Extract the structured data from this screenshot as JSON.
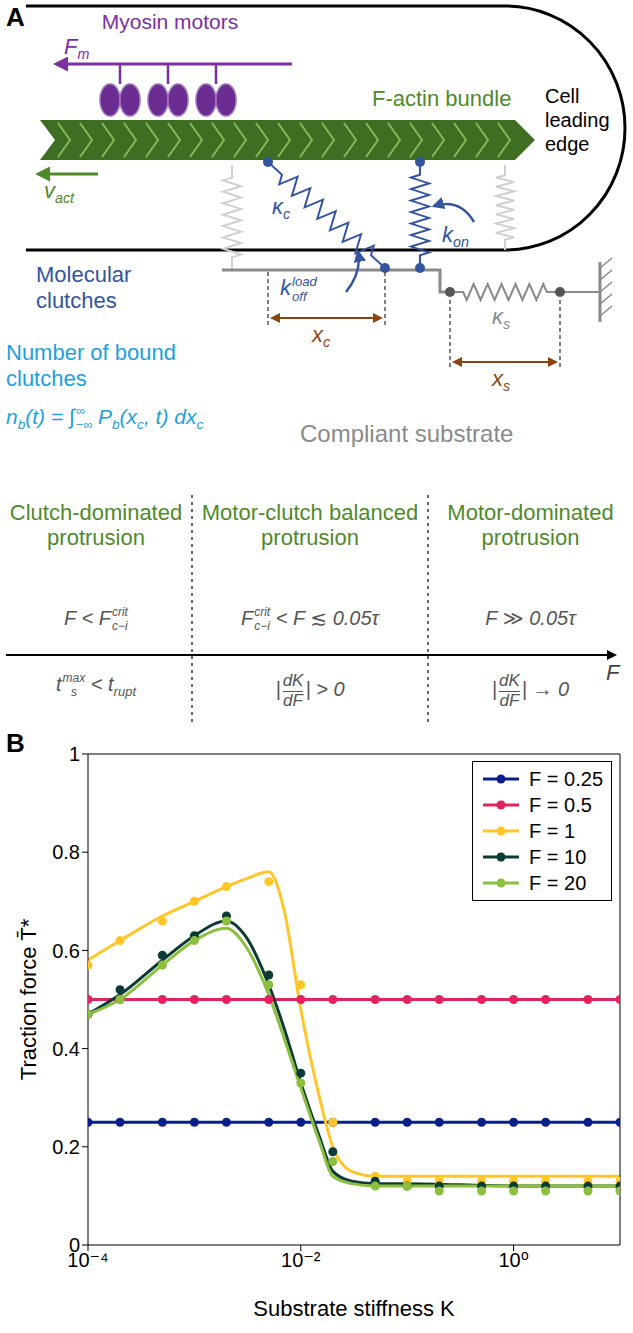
{
  "panel_a": {
    "label": "A",
    "cell": "Cell leading edge",
    "motors": "Myosin motors",
    "motor_force": [
      {
        "t": "F"
      },
      {
        "sub": "m"
      }
    ],
    "actin": "F-actin bundle",
    "actin_velocity": [
      {
        "t": "v"
      },
      {
        "sub": "act"
      }
    ],
    "clutches": "Molecular clutches",
    "clutch_stiffness": [
      {
        "t": "κ"
      },
      {
        "sub": "c"
      }
    ],
    "off_rate": [
      {
        "t": "k"
      },
      {
        "sub": "off",
        "sup": "load"
      }
    ],
    "on_rate": [
      {
        "t": "k"
      },
      {
        "sub": "on"
      }
    ],
    "clutch_stretch": [
      {
        "t": "x"
      },
      {
        "sub": "c"
      }
    ],
    "substrate_stretch": [
      {
        "t": "x"
      },
      {
        "sub": "s"
      }
    ],
    "substrate_stiffness": [
      {
        "t": "κ"
      },
      {
        "sub": "s"
      }
    ],
    "bound_count": "Number of bound clutches",
    "bound_formula": [
      {
        "t": "n"
      },
      {
        "sub": "b"
      },
      {
        "t": "(t) = ∫"
      },
      {
        "sub": "−∞",
        "sup": "∞"
      },
      {
        "t": " P"
      },
      {
        "sub": "b"
      },
      {
        "t": "(x"
      },
      {
        "sub": "c"
      },
      {
        "t": ", t) dx"
      },
      {
        "sub": "c"
      }
    ],
    "substrate": "Compliant substrate",
    "regimes": [
      {
        "title": "Clutch-dominated protrusion",
        "condition": [
          {
            "t": "F < F"
          },
          {
            "sub": "c−i",
            "sup": "crit"
          }
        ],
        "criterion": [
          {
            "t": "t"
          },
          {
            "sub": "s",
            "sup": "max"
          },
          {
            "t": " < t"
          },
          {
            "sub": "rupt"
          }
        ]
      },
      {
        "title": "Motor-clutch balanced protrusion",
        "condition": [
          {
            "t": "F"
          },
          {
            "sub": "c−i",
            "sup": "crit"
          },
          {
            "t": " < F ≲ 0.05τ"
          }
        ],
        "criterion": [
          {
            "t": "|"
          },
          {
            "num": "dK",
            "den": "dF"
          },
          {
            "t": "| > 0"
          }
        ]
      },
      {
        "title": "Motor-dominated protrusion",
        "condition": [
          {
            "t": "F ≫ 0.05τ"
          }
        ],
        "criterion": [
          {
            "t": "|"
          },
          {
            "num": "dK",
            "den": "dF"
          },
          {
            "t": "| → 0"
          }
        ]
      }
    ],
    "axis": "F"
  },
  "chart_data": {
    "label": "B",
    "type": "line",
    "x_label": "Substrate stiffness K",
    "y_label": "Traction force T̄*",
    "log": "x",
    "xlim": [
      0.0001,
      10
    ],
    "xticks": [
      {
        "value": 0.0001,
        "label": "10⁻⁴"
      },
      {
        "value": 0.01,
        "label": "10⁻²"
      },
      {
        "value": 1,
        "label": "10⁰"
      }
    ],
    "ylim": [
      0,
      1
    ],
    "yticks": [
      0,
      0.2,
      0.4,
      0.6,
      0.8,
      1
    ],
    "grid": false,
    "legend": "upper right",
    "x": [
      0.0001,
      0.0002,
      0.0005,
      0.001,
      0.002,
      0.003,
      0.005,
      0.007,
      0.01,
      0.015,
      0.02,
      0.03,
      0.05,
      0.1,
      1,
      10
    ],
    "series": [
      {
        "name": "F = 0.25",
        "color": "#0b1f8c",
        "marker": "circle",
        "line_style": "solid",
        "values": [
          0.25,
          0.25,
          0.25,
          0.25,
          0.25,
          0.25,
          0.25,
          0.25,
          0.25,
          0.25,
          0.25,
          0.25,
          0.25,
          0.25,
          0.25,
          0.25
        ],
        "points": {
          "x": [
            0.0001,
            0.0002,
            0.0005,
            0.001,
            0.002,
            0.005,
            0.01,
            0.02,
            0.05,
            0.1,
            0.2,
            0.5,
            1,
            2,
            5,
            10
          ],
          "values": [
            0.25,
            0.25,
            0.25,
            0.25,
            0.25,
            0.25,
            0.25,
            0.25,
            0.25,
            0.25,
            0.25,
            0.25,
            0.25,
            0.25,
            0.25,
            0.25
          ]
        }
      },
      {
        "name": "F = 0.5",
        "color": "#e0245e",
        "marker": "circle",
        "line_style": "solid",
        "values": [
          0.5,
          0.5,
          0.5,
          0.5,
          0.5,
          0.5,
          0.5,
          0.5,
          0.5,
          0.5,
          0.5,
          0.5,
          0.5,
          0.5,
          0.5,
          0.5
        ],
        "points": {
          "x": [
            0.0001,
            0.0002,
            0.0005,
            0.001,
            0.002,
            0.005,
            0.01,
            0.02,
            0.05,
            0.1,
            0.2,
            0.5,
            1,
            2,
            5,
            10
          ],
          "values": [
            0.5,
            0.5,
            0.5,
            0.5,
            0.5,
            0.5,
            0.5,
            0.5,
            0.5,
            0.5,
            0.5,
            0.5,
            0.5,
            0.5,
            0.5,
            0.5
          ]
        }
      },
      {
        "name": "F = 1",
        "color": "#ffc629",
        "marker": "circle",
        "line_style": "solid",
        "values": [
          0.58,
          0.62,
          0.67,
          0.7,
          0.73,
          0.745,
          0.76,
          0.68,
          0.48,
          0.3,
          0.2,
          0.15,
          0.14,
          0.14,
          0.14,
          0.14
        ],
        "points": {
          "x": [
            0.0001,
            0.0002,
            0.0005,
            0.001,
            0.002,
            0.005,
            0.01,
            0.02,
            0.05,
            0.1,
            0.2,
            0.5,
            1,
            2,
            5,
            10
          ],
          "values": [
            0.57,
            0.62,
            0.66,
            0.7,
            0.73,
            0.74,
            0.53,
            0.25,
            0.14,
            0.13,
            0.13,
            0.13,
            0.13,
            0.13,
            0.13,
            0.13
          ]
        }
      },
      {
        "name": "F = 10",
        "color": "#0b3b36",
        "marker": "circle",
        "line_style": "solid",
        "values": [
          0.47,
          0.51,
          0.58,
          0.63,
          0.66,
          0.63,
          0.53,
          0.44,
          0.33,
          0.22,
          0.15,
          0.13,
          0.125,
          0.125,
          0.12,
          0.12
        ],
        "points": {
          "x": [
            0.0001,
            0.0002,
            0.0005,
            0.001,
            0.002,
            0.005,
            0.01,
            0.02,
            0.05,
            0.1,
            0.2,
            0.5,
            1,
            2,
            5,
            10
          ],
          "values": [
            0.47,
            0.52,
            0.59,
            0.63,
            0.67,
            0.55,
            0.35,
            0.19,
            0.13,
            0.12,
            0.12,
            0.12,
            0.12,
            0.12,
            0.12,
            0.12
          ]
        }
      },
      {
        "name": "F = 20",
        "color": "#8cbf3f",
        "marker": "circle",
        "line_style": "solid",
        "values": [
          0.47,
          0.5,
          0.57,
          0.62,
          0.645,
          0.61,
          0.51,
          0.42,
          0.32,
          0.21,
          0.14,
          0.125,
          0.12,
          0.12,
          0.12,
          0.12
        ],
        "points": {
          "x": [
            0.0001,
            0.0002,
            0.0005,
            0.001,
            0.002,
            0.005,
            0.01,
            0.02,
            0.05,
            0.1,
            0.2,
            0.5,
            1,
            2,
            5,
            10
          ],
          "values": [
            0.47,
            0.5,
            0.57,
            0.62,
            0.66,
            0.53,
            0.33,
            0.17,
            0.12,
            0.12,
            0.11,
            0.11,
            0.11,
            0.11,
            0.11,
            0.11
          ]
        }
      }
    ]
  }
}
